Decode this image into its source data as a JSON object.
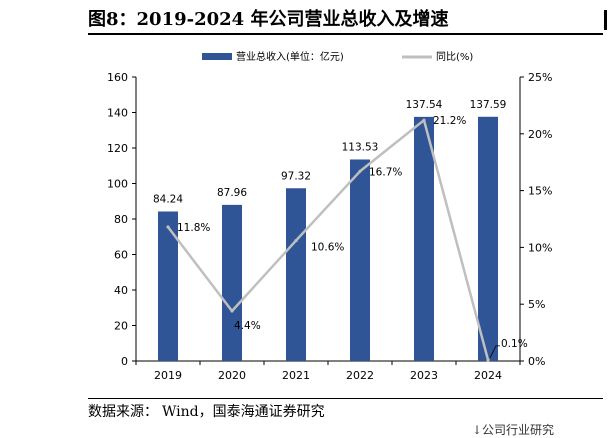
{
  "header": {
    "title": "图8：2019-2024 年公司营业总收入及增速"
  },
  "footer": {
    "source_label": "数据来源：",
    "source_text": "Wind，国泰海通证券研究",
    "corner_fragment": "↓公司行业研究"
  },
  "chart_data": {
    "type": "bar+line",
    "categories": [
      "2019",
      "2020",
      "2021",
      "2022",
      "2023",
      "2024"
    ],
    "series": [
      {
        "name": "营业总收入(单位：亿元)",
        "kind": "bar",
        "axis": "left",
        "color": "#2f5597",
        "values": [
          84.24,
          87.96,
          97.32,
          113.53,
          137.54,
          137.59
        ],
        "labels": [
          "84.24",
          "87.96",
          "97.32",
          "113.53",
          "137.54",
          "137.59"
        ]
      },
      {
        "name": "同比(%)",
        "kind": "line",
        "axis": "right",
        "color": "#bfbfbf",
        "values": [
          11.8,
          4.4,
          10.6,
          16.7,
          21.2,
          0.1
        ],
        "labels": [
          "11.8%",
          "4.4%",
          "10.6%",
          "16.7%",
          "21.2%",
          "0.1%"
        ]
      }
    ],
    "left_axis": {
      "ylim": [
        0,
        160
      ],
      "ticks": [
        "0",
        "20",
        "40",
        "60",
        "80",
        "100",
        "120",
        "140",
        "160"
      ]
    },
    "right_axis": {
      "ylim": [
        0,
        25
      ],
      "ticks": [
        "0%",
        "5%",
        "10%",
        "15%",
        "20%",
        "25%"
      ]
    },
    "legend_position": "top",
    "grid": false
  }
}
